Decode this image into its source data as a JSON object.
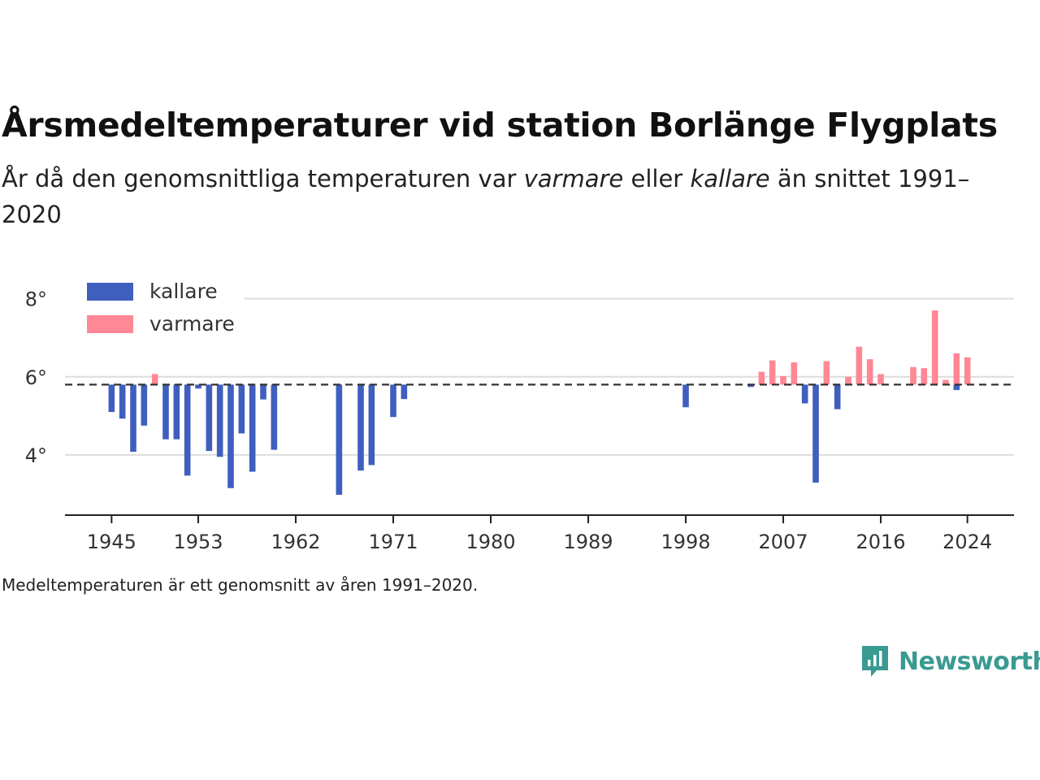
{
  "title": "Årsmedeltemperaturer vid station Borlänge Flygplats",
  "subtitle": {
    "part1": "År då den genomsnittliga temperaturen var ",
    "emph1": "varmare",
    "part2": " eller ",
    "emph2": "kallare",
    "part3": " än snittet 1991–2020"
  },
  "note": "Medeltemperaturen är ett genomsnitt av åren 1991–2020.",
  "brand": "Newsworthy",
  "colors": {
    "kallare": "#3f5fbf",
    "varmare": "#ff8796",
    "baseline": "#333333",
    "grid": "#dddddd",
    "brand": "#3a9a92"
  },
  "chart_data": {
    "type": "bar",
    "baseline": 5.8,
    "ylim": [
      2.5,
      8.2
    ],
    "xlim": [
      1940.7,
      2028.3
    ],
    "yticks": [
      4,
      6,
      8
    ],
    "ytick_labels": [
      "4°",
      "6°",
      "8°"
    ],
    "xticks": [
      1945,
      1953,
      1962,
      1971,
      1980,
      1989,
      1998,
      2007,
      2016,
      2024
    ],
    "legend": {
      "position": "top-left",
      "entries": [
        {
          "key": "kallare",
          "label": "kallare"
        },
        {
          "key": "varmare",
          "label": "varmare"
        }
      ]
    },
    "grid": true,
    "series": [
      {
        "name": "kallare",
        "x": [
          1945,
          1946,
          1947,
          1948,
          1950,
          1951,
          1952,
          1953,
          1954,
          1955,
          1956,
          1957,
          1958,
          1959,
          1960,
          1966,
          1968,
          1969,
          1971,
          1972,
          1998,
          2004,
          2009,
          2010,
          2012,
          2023
        ],
        "values": [
          5.1,
          4.93,
          4.08,
          4.75,
          4.4,
          4.4,
          3.47,
          5.7,
          4.1,
          3.95,
          3.15,
          4.55,
          3.57,
          5.42,
          4.13,
          2.98,
          3.6,
          3.74,
          4.97,
          5.43,
          5.22,
          5.74,
          5.32,
          3.29,
          5.17,
          5.66
        ]
      },
      {
        "name": "varmare",
        "x": [
          1949,
          2005,
          2006,
          2007,
          2008,
          2011,
          2013,
          2014,
          2015,
          2016,
          2019,
          2020,
          2021,
          2022,
          2023,
          2024
        ],
        "values": [
          6.07,
          6.13,
          6.42,
          6.02,
          6.37,
          6.4,
          6.0,
          6.77,
          6.45,
          6.07,
          6.25,
          6.22,
          7.7,
          5.92,
          6.6,
          6.5
        ]
      }
    ]
  }
}
